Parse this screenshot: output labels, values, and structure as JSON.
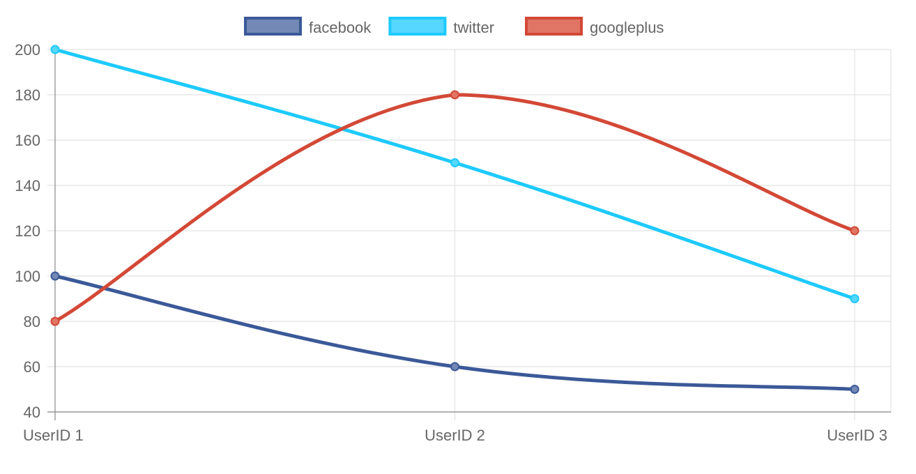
{
  "chart_data": {
    "type": "line",
    "categories": [
      "UserID 1",
      "UserID 2",
      "UserID 3"
    ],
    "series": [
      {
        "name": "facebook",
        "values": [
          100,
          60,
          50
        ],
        "color": "#3b5998",
        "fill": "#7388b5"
      },
      {
        "name": "twitter",
        "values": [
          200,
          150,
          90
        ],
        "color": "#1dcaff",
        "fill": "#55d7ff"
      },
      {
        "name": "googleplus",
        "values": [
          80,
          180,
          120
        ],
        "color": "#d34836",
        "fill": "#e07565"
      }
    ],
    "ylim": [
      40,
      200
    ],
    "yticks": [
      40,
      60,
      80,
      100,
      120,
      140,
      160,
      180,
      200
    ],
    "grid": true,
    "legend_position": "top-center",
    "title": "",
    "xlabel": "",
    "ylabel": ""
  }
}
